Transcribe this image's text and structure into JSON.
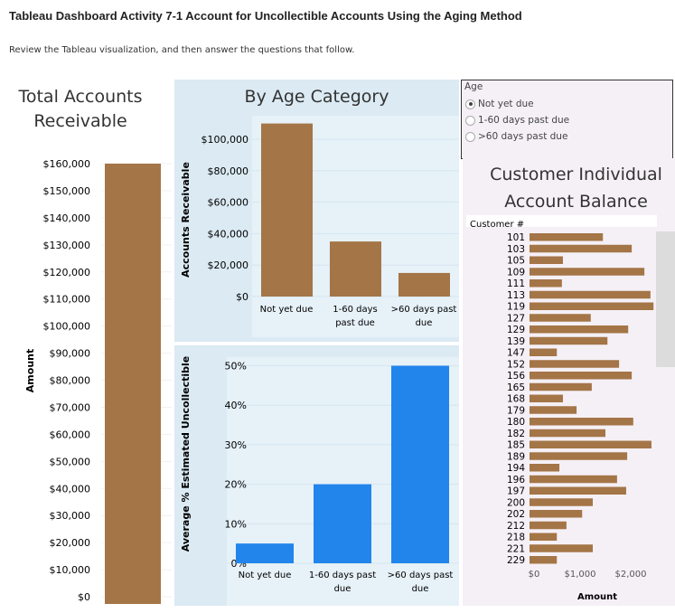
{
  "page": {
    "title": "Tableau Dashboard Activity 7-1 Account for Uncollectible Accounts Using the Aging Method",
    "subtitle": "Review the Tableau visualization, and then answer the questions that follow."
  },
  "filter": {
    "label": "Age",
    "options": [
      {
        "label": "Not yet due",
        "selected": true
      },
      {
        "label": "1-60 days past due",
        "selected": false
      },
      {
        "label": ">60 days past due",
        "selected": false
      }
    ]
  },
  "colors": {
    "brown": "#a47547",
    "blue": "#2185ec",
    "panel_blue": "#dbeaf3",
    "panel_pink": "#f5f0f6"
  },
  "chart_data": [
    {
      "type": "bar",
      "title": "Total Accounts Receivable",
      "ylabel": "Amount",
      "values": [
        160000
      ],
      "ylim": [
        0,
        160000
      ],
      "ticks": [
        "$0",
        "$10,000",
        "$20,000",
        "$30,000",
        "$40,000",
        "$50,000",
        "$60,000",
        "$70,000",
        "$80,000",
        "$90,000",
        "$100,000",
        "$110,000",
        "$120,000",
        "$130,000",
        "$140,000",
        "$150,000",
        "$160,000"
      ]
    },
    {
      "type": "bar",
      "title": "By Age Category",
      "ylabel": "Accounts Receivable",
      "categories": [
        [
          "Not yet due"
        ],
        [
          "1-60 days",
          "past due"
        ],
        [
          ">60 days past",
          "due"
        ]
      ],
      "values": [
        110000,
        35000,
        15000
      ],
      "ylim": [
        0,
        110000
      ],
      "ticks": [
        "$0",
        "$20,000",
        "$40,000",
        "$60,000",
        "$80,000",
        "$100,000"
      ]
    },
    {
      "type": "bar",
      "ylabel": "Average % Estimated Uncollectible",
      "categories": [
        [
          "Not yet due"
        ],
        [
          "1-60 days past",
          "due"
        ],
        [
          ">60 days past",
          "due"
        ]
      ],
      "values": [
        5,
        20,
        50
      ],
      "ylim": [
        0,
        50
      ],
      "ticks": [
        "0%",
        "10%",
        "20%",
        "30%",
        "40%",
        "50%"
      ]
    },
    {
      "type": "bar",
      "orientation": "horizontal",
      "title": "Customer Individual Account Balance",
      "ylabel": "Customer #",
      "xlabel": "Amount",
      "xticks": [
        "$0",
        "$1,000",
        "$2,000"
      ],
      "categories": [
        "101",
        "103",
        "105",
        "109",
        "111",
        "113",
        "119",
        "127",
        "129",
        "139",
        "147",
        "152",
        "156",
        "165",
        "168",
        "179",
        "180",
        "182",
        "185",
        "189",
        "194",
        "196",
        "197",
        "200",
        "202",
        "212",
        "218",
        "221",
        "229"
      ],
      "values": [
        1450,
        2020,
        660,
        2270,
        640,
        2390,
        2450,
        1210,
        1950,
        1540,
        540,
        1770,
        2020,
        1230,
        660,
        930,
        2050,
        1500,
        2410,
        1930,
        590,
        1730,
        1910,
        1250,
        1040,
        730,
        540,
        1250,
        540
      ]
    }
  ]
}
